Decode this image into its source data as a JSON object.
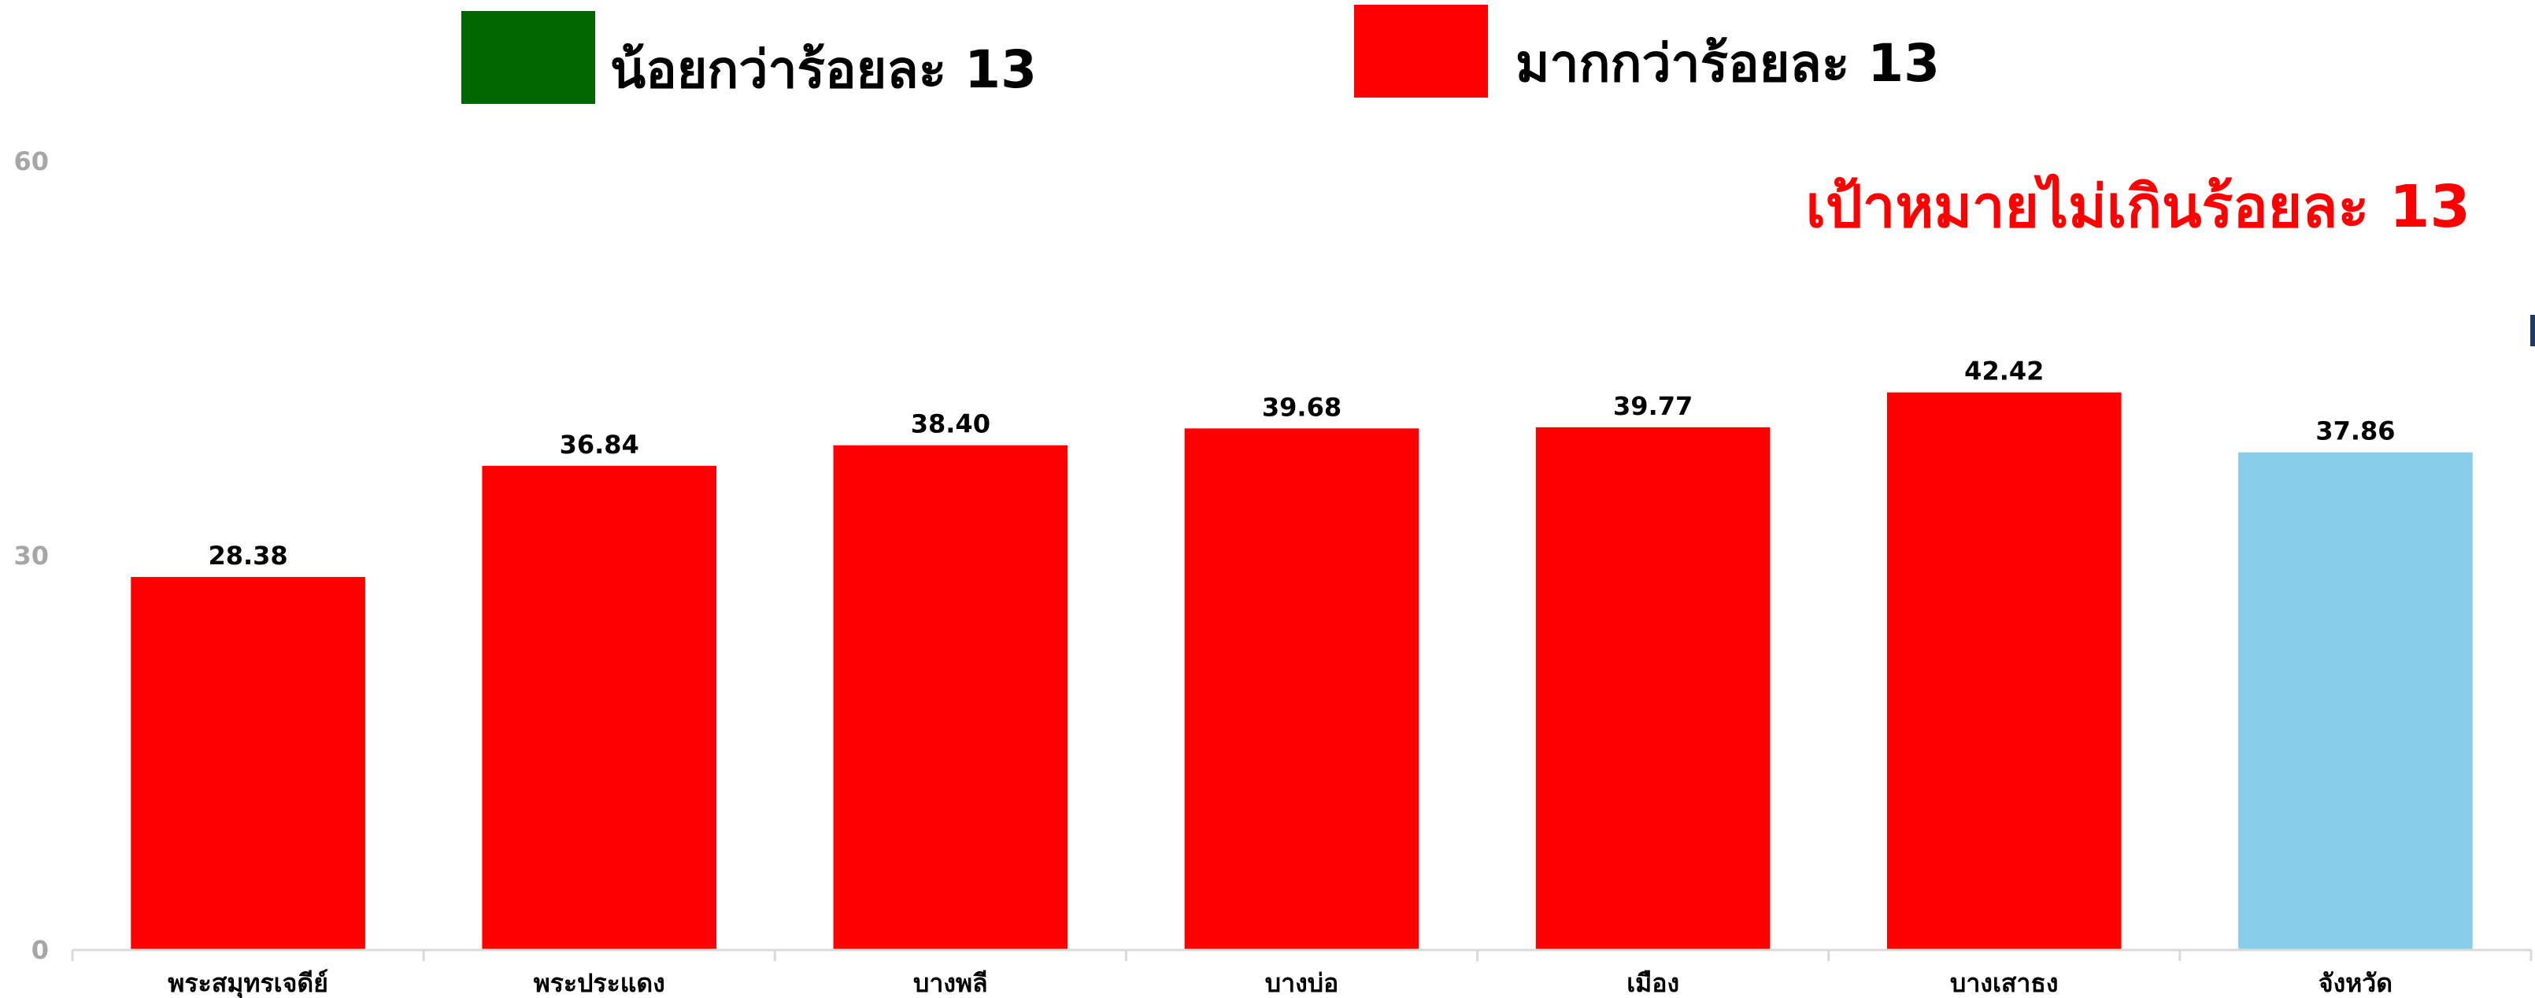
{
  "legend": {
    "items": [
      {
        "label": "น้อยกว่าร้อยละ 13",
        "color": "#006600"
      },
      {
        "label": "มากกว่าร้อยละ 13",
        "color": "#ff0000"
      }
    ]
  },
  "target_text": "เป้าหมายไม่เกินร้อยละ 13",
  "chart_data": {
    "type": "bar",
    "categories": [
      "พระสมุทรเจดีย์",
      "พระประแดง",
      "บางพลี",
      "บางบ่อ",
      "เมือง",
      "บางเสาธง",
      "จังหวัด"
    ],
    "values": [
      28.38,
      36.84,
      38.4,
      39.68,
      39.77,
      42.42,
      37.86
    ],
    "data_labels": [
      "28.38",
      "36.84",
      "38.40",
      "39.68",
      "39.77",
      "42.42",
      "37.86"
    ],
    "bar_colors": [
      "#ff0000",
      "#ff0000",
      "#ff0000",
      "#ff0000",
      "#ff0000",
      "#ff0000",
      "#87ceeb"
    ],
    "yticks": [
      0,
      30,
      60
    ],
    "ylim": [
      0,
      60
    ],
    "grid": false,
    "title": "",
    "xlabel": "",
    "ylabel": ""
  }
}
